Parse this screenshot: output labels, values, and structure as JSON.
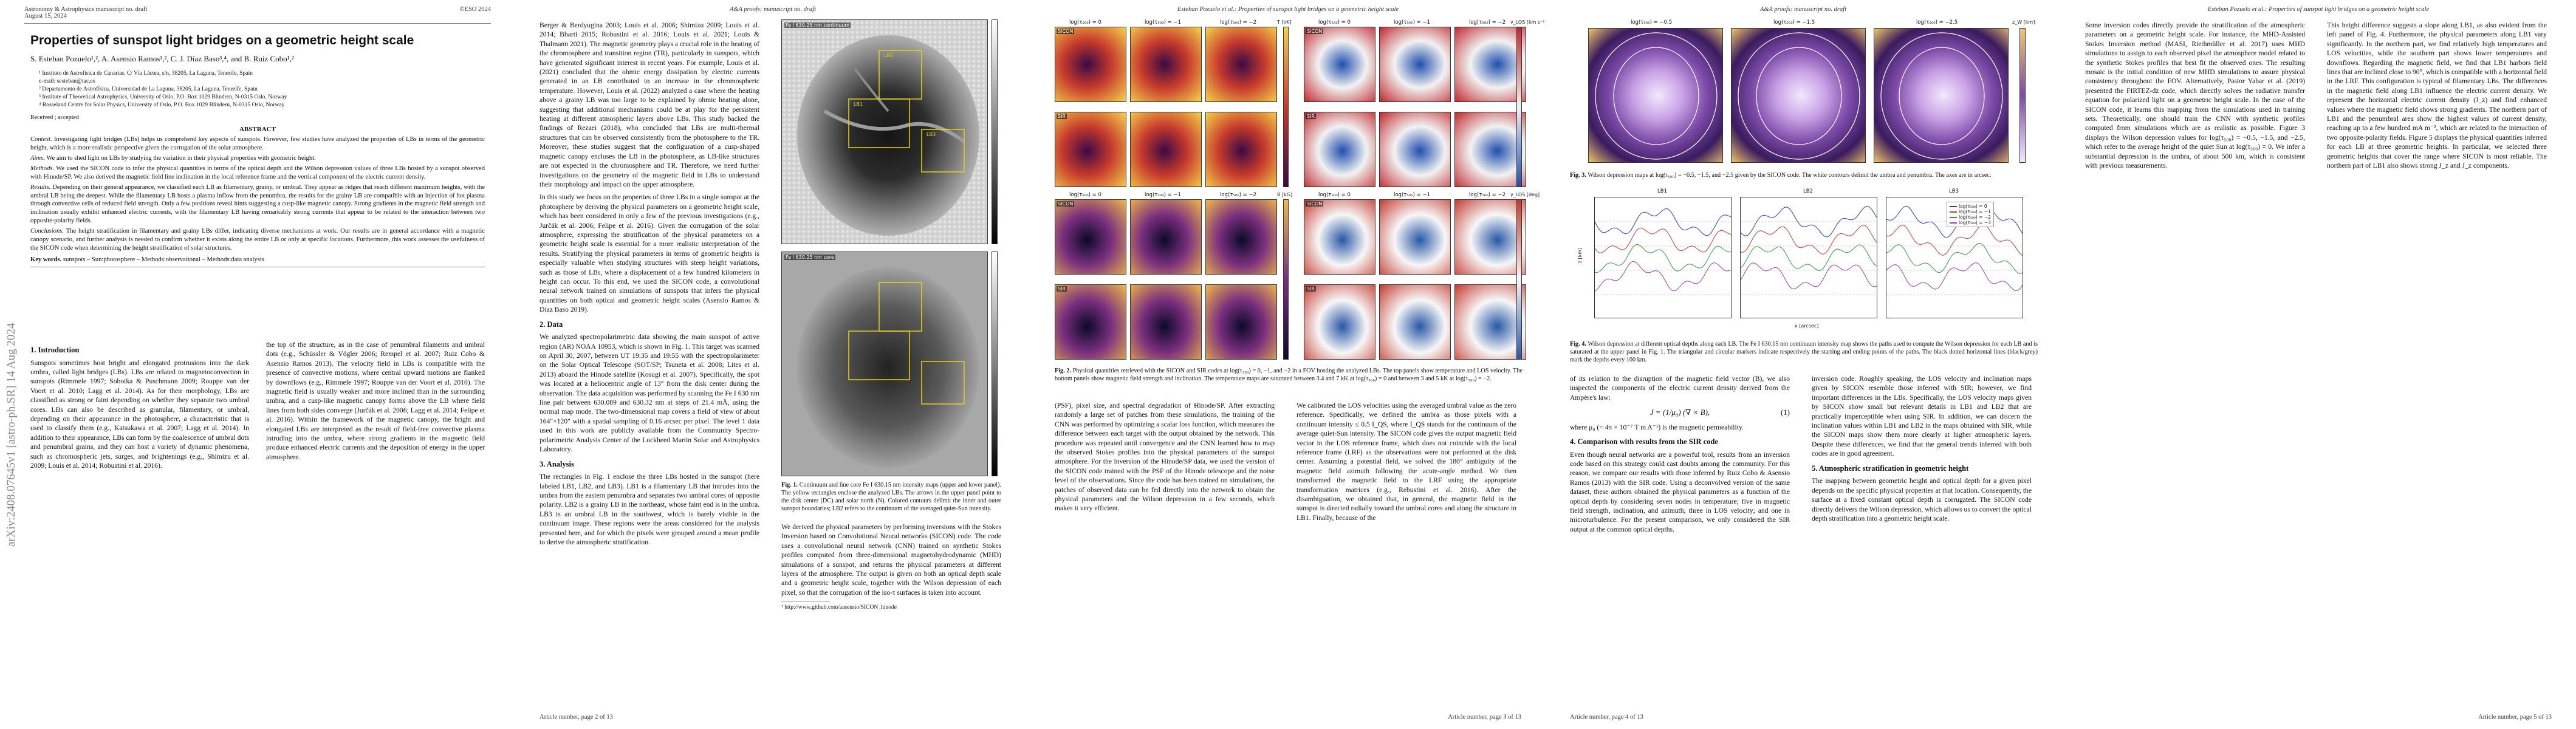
{
  "page1": {
    "header_left_1": "Astronomy & Astrophysics manuscript no. draft",
    "header_left_2": "August 15, 2024",
    "header_right": "©ESO 2024",
    "title": "Properties of sunspot light bridges on a geometric height scale",
    "authors": "S. Esteban Pozuelo¹,², A. Asensio Ramos¹,², C. J. Díaz Baso³,⁴, and B. Ruiz Cobo¹,²",
    "affiliations": [
      "¹ Instituto de Astrofísica de Canarias, C/ Vía Láctea, s/n, 38205, La Laguna, Tenerife, Spain",
      "e-mail: sesteban@iac.es",
      "² Departamento de Astrofísica, Universidad de La Laguna, 38205, La Laguna, Tenerife, Spain",
      "³ Institute of Theoretical Astrophysics, University of Oslo, P.O. Box 1029 Blindern, N-0315 Oslo, Norway",
      "⁴ Rosseland Centre for Solar Physics, University of Oslo, P.O. Box 1029 Blindern, N-0315 Oslo, Norway"
    ],
    "received": "Received ; accepted",
    "abstract_heading": "ABSTRACT",
    "abstract": [
      {
        "label": "Context.",
        "text": "Investigating light bridges (LBs) helps us comprehend key aspects of sunspots. However, few studies have analyzed the properties of LBs in terms of the geometric height, which is a more realistic perspective given the corrugation of the solar atmosphere."
      },
      {
        "label": "Aims.",
        "text": "We aim to shed light on LBs by studying the variation in their physical properties with geometric height."
      },
      {
        "label": "Methods.",
        "text": "We used the SICON code to infer the physical quantities in terms of the optical depth and the Wilson depression values of three LBs hosted by a sunspot observed with Hinode/SP. We also derived the magnetic field line inclination in the local reference frame and the vertical component of the electric current density."
      },
      {
        "label": "Results.",
        "text": "Depending on their general appearance, we classified each LB as filamentary, grainy, or umbral. They appear as ridges that reach different maximum heights, with the umbral LB being the deepest. While the filamentary LB hosts a plasma inflow from the penumbra, the results for the grainy LB are compatible with an injection of hot plasma through convective cells of reduced field strength. Only a few positions reveal hints suggesting a cusp-like magnetic canopy. Strong gradients in the magnetic field strength and inclination usually exhibit enhanced electric currents, with the filamentary LB having remarkably strong currents that appear to be related to the interaction between two opposite-polarity fields."
      },
      {
        "label": "Conclusions.",
        "text": "The height stratification in filamentary and grainy LBs differ, indicating diverse mechanisms at work. Our results are in general accordance with a magnetic canopy scenario, and further analysis is needed to confirm whether it exists along the entire LB or only at specific locations. Furthermore, this work assesses the usefulness of the SICON code when determining the height stratification of solar structures."
      }
    ],
    "keywords_label": "Key words.",
    "keywords": "sunspots – Sun:photosphere – Methods:observational – Methods:data analysis",
    "intro_heading": "1. Introduction",
    "intro_left": "Sunspots sometimes host bright and elongated protrusions into the dark umbra, called light bridges (LBs). LBs are related to magnetoconvection in sunspots (Rimmele 1997; Sobotka & Puschmann 2009; Rouppe van der Voort et al. 2010; Lagg et al. 2014). As for their morphology, LBs are classified as strong or faint depending on whether they separate two umbral cores. LBs can also be described as granular, filamentary, or umbral, depending on their appearance in the photosphere, a characteristic that is used to classify them (e.g., Katsukawa et al. 2007; Lagg et al. 2014). In addition to their appearance, LBs can form by the coalescence of umbral dots and penumbral grains, and they can host a variety of dynamic phenomena, such as chromospheric jets, surges, and brightenings (e.g., Shimizu et al. 2009; Louis et al. 2014; Robustini et al. 2016).",
    "intro_right": "the top of the structure, as in the case of penumbral filaments and umbral dots (e.g., Schüssler & Vögler 2006; Rempel et al. 2007; Ruiz Cobo & Asensio Ramos 2013). The velocity field in LBs is compatible with the presence of convective motions, where central upward motions are flanked by downflows (e.g., Rimmele 1997; Rouppe van der Voort et al. 2010). The magnetic field is usually weaker and more inclined than in the surrounding umbra, and a cusp-like magnetic canopy forms above the LB where field lines from both sides converge (Jurčák et al. 2006; Lagg et al. 2014; Felipe et al. 2016). Within the framework of the magnetic canopy, the bright and elongated LBs are interpreted as the result of field-free convective plasma intruding into the umbra, where strong gradients in the magnetic field produce enhanced electric currents and the deposition of energy in the upper atmosphere."
  },
  "page2": {
    "header_center": "A&A proofs: manuscript no. draft",
    "col1_top": "Berger & Berdyugina 2003; Louis et al. 2006; Shimizu 2009; Louis et al. 2014; Bharti 2015; Robustini et al. 2016; Louis et al. 2021; Louis & Thalmann 2021). The magnetic geometry plays a crucial role in the heating of the chromosphere and transition region (TR), particularly in sunspots, which have generated significant interest in recent years. For example, Louis et al. (2021) concluded that the ohmic energy dissipation by electric currents generated in an LB contributed to an increase in the chromospheric temperature. However, Louis et al. (2022) analyzed a case where the heating above a grainy LB was too large to be explained by ohmic heating alone, suggesting that additional mechanisms could be at play for the persistent heating at different atmospheric layers above LBs. This study backed the findings of Rezaei (2018), who concluded that LBs are multi-thermal structures that can be observed consistently from the photosphere to the TR. Moreover, these studies suggest that the configuration of a cusp-shaped magnetic canopy encloses the LB in the photosphere, as LB-like structures are not expected in the chromosphere and TR. Therefore, we need further investigations on the geometry of the magnetic field in LBs to understand their morphology and impact on the upper atmosphere.",
    "col1_mid": "In this study we focus on the properties of three LBs in a single sunspot at the photosphere by deriving the physical parameters on a geometric height scale, which has been considered in only a few of the previous investigations (e.g., Jurčák et al. 2006; Felipe et al. 2016). Given the corrugation of the solar atmosphere, expressing the stratification of the physical parameters on a geometric height scale is essential for a more realistic interpretation of the results. Stratifying the physical parameters in terms of geometric heights is especially valuable when studying structures with steep height variations, such as those of LBs, where a displacement of a few hundred kilometers in height can occur. To this end, we used the SICON code, a convolutional neural network trained on simulations of sunspots that infers the physical quantities on both optical and geometric height scales (Asensio Ramos & Díaz Baso 2019).",
    "data_heading": "2. Data",
    "data_text": "We analyzed spectropolarimetric data showing the main sunspot of active region (AR) NOAA 10953, which is shown in Fig. 1. This target was scanned on April 30, 2007, between UT 19:35 and 19:55 with the spectropolarimeter on the Solar Optical Telescope (SOT/SP; Tsuneta et al. 2008; Lites et al. 2013) aboard the Hinode satellite (Kosugi et al. 2007). Specifically, the spot was located at a heliocentric angle of 13° from the disk center during the observation. The data acquisition was performed by scanning the Fe I 630 nm line pair between 630.089 and 630.32 nm at steps of 21.4 mÅ, using the normal map mode. The two-dimensional map covers a field of view of about 164″×120″ with a spatial sampling of 0.16 arcsec per pixel. The level 1 data used in this work are publicly available from the Community Spectro-polarimetric Analysis Center of the Lockheed Martin Solar and Astrophysics Laboratory.",
    "analysis_heading": "3. Analysis",
    "analysis_text": "The rectangles in Fig. 1 enclose the three LBs hosted in the sunspot (here labeled LB1, LB2, and LB3). LB1 is a filamentary LB that intrudes into the umbra from the eastern penumbra and separates two umbral cores of opposite polarity. LB2 is a grainy LB in the northeast, whose faint end is in the umbra. LB3 is an umbral LB in the southwest, which is barely visible in the continuum image. These regions were the areas considered for the analysis presented here, and for which the pixels were grouped around a mean profile to derive the atmospheric stratification.",
    "fig1_labels": [
      "Fe I 630.25 nm continuum",
      "LB1",
      "LB2",
      "LB3",
      "Fe I 630.25 nm core"
    ],
    "fig1_caption_label": "Fig. 1.",
    "fig1_caption": "Continuum and line core Fe I 630.15 nm intensity maps (upper and lower panel). The yellow rectangles enclose the analyzed LBs. The arrows in the upper panel point to the disk center (DC) and solar north (N). Colored contours delimit the inner and outer sunspot boundaries; LB2 refers to the continuum of the averaged quiet-Sun intensity.",
    "col2_text": "We derived the physical parameters by performing inversions with the Stokes Inversion based on Convolutional Neural networks (SICON) code. The code uses a convolutional neural network (CNN) trained on synthetic Stokes profiles computed from three-dimensional magnetohydrodynamic (MHD) simulations of a sunspot, and returns the physical parameters at different layers of the atmosphere. The output is given on both an optical depth scale and a geometric height scale, together with the Wilson depression of each pixel, so that the corrugation of the iso-τ surfaces is taken into account.",
    "footnote": "¹ http://www.github.com/aasensio/SICON_hinode",
    "footer_left": "Article number, page 2 of 13"
  },
  "page3": {
    "header_center": "Esteban Pozuelo et al.: Properties of sunspot light bridges on a geometric height scale",
    "row_labels": [
      "SICON",
      "SIR",
      "SICON",
      "SIR"
    ],
    "panel_titles_top": [
      "log(τ₅₀₀) = 0",
      "log(τ₅₀₀) = −1",
      "log(τ₅₀₀) = −2",
      "log(τ₅₀₀) = 0",
      "log(τ₅₀₀) = −1",
      "log(τ₅₀₀) = −2"
    ],
    "panel_titles_bottom": [
      "log(τ₅₀₀) = 0",
      "log(τ₅₀₀) = −1",
      "log(τ₅₀₀) = −2",
      "log(τ₅₀₀) = 0",
      "log(τ₅₀₀) = −1",
      "log(τ₅₀₀) = −2"
    ],
    "colorbar_labels": [
      "T [kK]",
      "v_LOS [km s⁻¹]",
      "B [kG]",
      "γ_LOS [deg]"
    ],
    "fig2_caption_label": "Fig. 2.",
    "fig2_caption": "Physical quantities retrieved with the SICON and SIR codes at log(τ₅₀₀) = 0, −1, and −2 in a FOV hosting the analyzed LBs. The top panels show temperature and LOS velocity. The bottom panels show magnetic field strength and inclination. The temperature maps are saturated between 3.4 and 7 kK at log(τ₅₀₀) = 0 and between 3 and 5 kK at log(τ₅₀₀) = −2.",
    "col1": "(PSF), pixel size, and spectral degradation of Hinode/SP. After extracting randomly a large set of patches from these simulations, the training of the CNN was performed by optimizing a scalar loss function, which measures the difference between each target with the output obtained by the network. This procedure was repeated until convergence and the CNN learned how to map the observed Stokes profiles into the physical parameters of the sunspot atmosphere. For the inversion of the Hinode/SP data, we used the version of the SICON code trained with the PSF of the Hinode telescope and the noise level of the observations. Since the code has been trained on simulations, the patches of observed data can be fed directly into the network to obtain the physical parameters and the Wilson depression in a few seconds, which makes it very efficient.",
    "col2": "We calibrated the LOS velocities using the averaged umbral value as the zero reference. Specifically, we defined the umbra as those pixels with a continuum intensity ≤ 0.5 I_QS, where I_QS stands for the continuum of the average quiet-Sun intensity. The SICON code gives the output magnetic field vector in the LOS reference frame, which does not coincide with the local reference frame (LRF) as the observations were not performed at the disk center. Assuming a potential field, we solved the 180° ambiguity of the magnetic field azimuth following the acute-angle method. We then transformed the magnetic field to the LRF using the appropriate transformation matrices (e.g., Rebustini et al. 2016). After the disambiguation, we obtained that, in general, the magnetic field in the sunspot is directed radially toward the umbral cores and along the structure in LB1. Finally, because of the",
    "footer_right": "Article number, page 3 of 13"
  },
  "page4": {
    "header_center": "A&A proofs: manuscript no. draft",
    "fig3_panel_titles": [
      "log(τ₅₀₀) = −0.5",
      "log(τ₅₀₀) = −1.5",
      "log(τ₅₀₀) = −2.5"
    ],
    "fig3_colorbar_label": "z_W [km]",
    "fig3_caption_label": "Fig. 3.",
    "fig3_caption": "Wilson depression maps at log(τ₅₀₀) = −0.5, −1.5, and −2.5 given by the SICON code. The white contours delimit the umbra and penumbra. The axes are in arcsec.",
    "fig4_labels": [
      "LB1",
      "LB2",
      "LB3"
    ],
    "fig4_legend": [
      "log(τ₅₀₀) = 0",
      "log(τ₅₀₀) = −1",
      "log(τ₅₀₀) = −2",
      "log(τ₅₀₀) = −3"
    ],
    "fig4_ylabel": "z [km]",
    "fig4_xlabel": "x [arcsec]",
    "fig4_caption_label": "Fig. 4.",
    "fig4_caption": "Wilson depression at different optical depths along each LB. The Fe I 630.15 nm continuum intensity map shows the paths used to compute the Wilson depression for each LB and is saturated at the upper panel in Fig. 1. The triangular and circular markers indicate respectively the starting and ending points of the paths. The black dotted horizontal lines (black/grey) mark the depths every 100 km.",
    "col1": "of its relation to the disruption of the magnetic field vector (B), we also inspected the components of the electric current density derived from the Ampère's law:",
    "equation": "J = (1/μ₀) (∇ × B),",
    "equation_number": "(1)",
    "col1_b": "where μ₀ (= 4π × 10⁻⁷ T m A⁻¹) is the magnetic permeability.",
    "sec4_heading": "4. Comparison with results from the SIR code",
    "sec4_text": "Even though neural networks are a powerful tool, results from an inversion code based on this strategy could cast doubts among the community. For this reason, we compare our results with those inferred by Ruiz Cobo & Asensio Ramos (2013) with the SIR code. Using a deconvolved version of the same dataset, these authors obtained the physical parameters as a function of the optical depth by considering seven nodes in temperature; five in magnetic field strength, inclination, and azimuth; three in LOS velocity; and one in microturbulence. For the present comparison, we only considered the SIR output at the common optical depths.",
    "col2": "inversion code. Roughly speaking, the LOS velocity and inclination maps given by SICON resemble those inferred with SIR; however, we find important differences in the LBs. Specifically, the LOS velocity maps given by SICON show small but relevant details in LB1 and LB2 that are practically imperceptible when using SIR. In addition, we can discern the inclination values within LB1 and LB2 in the maps obtained with SIR, while the SICON maps show them more clearly at higher atmospheric layers. Despite these differences, we find that the general trends inferred with both codes are in good agreement.",
    "sec5_heading": "5. Atmospheric stratification in geometric height",
    "sec5_text": "The mapping between geometric height and optical depth for a given pixel depends on the specific physical properties at that location. Consequently, the surface at a fixed constant optical depth is corrugated. The SICON code directly delivers the Wilson depression, which allows us to convert the optical depth stratification into a geometric height scale.",
    "footer_left": "Article number, page 4 of 13"
  },
  "page5": {
    "header_center": "Esteban Pozuelo et al.: Properties of sunspot light bridges on a geometric height scale",
    "col1": "Some inversion codes directly provide the stratification of the atmospheric parameters on a geometric height scale. For instance, the MHD-Assisted Stokes Inversion method (MASI, Riethmüller et al. 2017) uses MHD simulations to assign to each observed pixel the atmosphere model related to the synthetic Stokes profiles that best fit the observed ones. The resulting mosaic is the initial condition of new MHD simulations to assure physical consistency throughout the FOV. Alternatively, Pastor Yabar et al. (2019) presented the FIRTEZ-dz code, which directly solves the radiative transfer equation for polarized light on a geometric height scale. In the case of the SICON code, it learns this mapping from the simulations used in training sets. Theoretically, one should train the CNN with synthetic profiles computed from simulations which are as realistic as possible. Figure 3 displays the Wilson depression values for log(τ₅₀₀) = −0.5, −1.5, and −2.5, which refer to the average height of the quiet Sun at log(τ₅₀₀) = 0. We infer a substantial depression in the umbra, of about 500 km, which is consistent with previous measurements.",
    "col2": "This height difference suggests a slope along LB1, as also evident from the left panel of Fig. 4. Furthermore, the physical parameters along LB1 vary significantly. In the northern part, we find relatively high temperatures and LOS velocities, while the southern part shows lower temperatures and downflows. Regarding the magnetic field, we find that LB1 harbors field lines that are inclined close to 90°, which is compatible with a horizontal field in the LRF. This configuration is typical of filamentary LBs. The differences in the magnetic field along LB1 influence the electric current density. We represent the horizontal electric current density (J_z) and find enhanced values where the magnetic field shows strong gradients. The northern part of LB1 and the penumbral area show the highest values of current density, reaching up to a few hundred mA m⁻², which are related to the interaction of two opposite-polarity fields. Figure 5 displays the physical quantities inferred for each LB at three geometric heights. In particular, we selected three geometric heights that cover the range where SICON is most reliable. The northern part of LB1 also shows strong J_z and J_z components.",
    "footer_right": "Article number, page 5 of 13"
  },
  "arxiv_stamp": "arXiv:2408.07645v1  [astro-ph.SR]  14 Aug 2024",
  "colors": {
    "text": "#111111",
    "rule": "#777777",
    "lb_box": "#e8d21a",
    "sicon_label_bg": "#000000"
  }
}
